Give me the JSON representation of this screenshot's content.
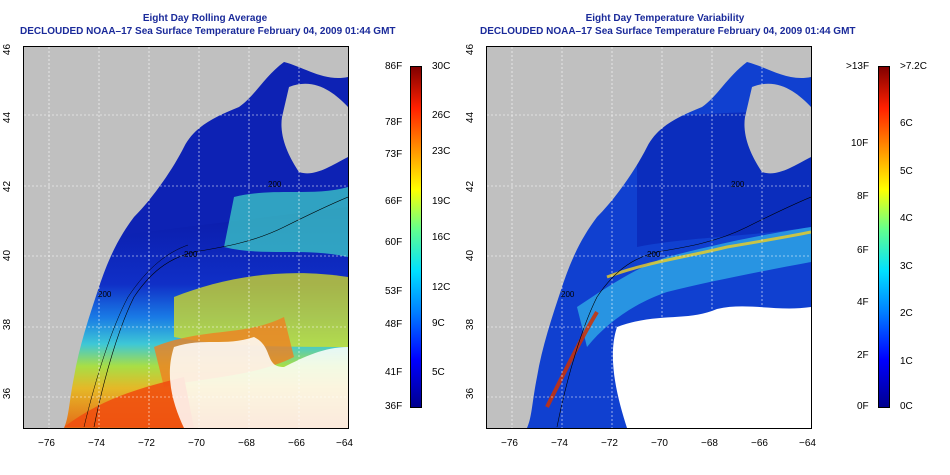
{
  "left_panel": {
    "title_line1": "Eight Day Rolling Average",
    "title_line2": "DECLOUDED NOAA–17 Sea Surface Temperature February 04, 2009 01:44 GMT",
    "colorbar": {
      "left_labels": [
        "86F",
        "78F",
        "73F",
        "66F",
        "60F",
        "53F",
        "48F",
        "41F",
        "36F"
      ],
      "right_labels": [
        "30C",
        "26C",
        "23C",
        "19C",
        "16C",
        "12C",
        "9C",
        "5C"
      ]
    },
    "contour_labels": [
      "200",
      "200",
      "200"
    ]
  },
  "right_panel": {
    "title_line1": "Eight Day Temperature Variability",
    "title_line2": "DECLOUDED NOAA–17 Sea Surface Temperature February 04, 2009 01:44 GMT",
    "colorbar": {
      "left_labels": [
        ">13F",
        "10F",
        "8F",
        "6F",
        "4F",
        "2F",
        "0F"
      ],
      "right_labels": [
        ">7.2C",
        "6C",
        "5C",
        "4C",
        "3C",
        "2C",
        "1C",
        "0C"
      ]
    },
    "contour_labels": [
      "200",
      "200",
      "200"
    ]
  },
  "axes": {
    "lon_labels": [
      "−76",
      "−74",
      "−72",
      "−70",
      "−68",
      "−66",
      "−64"
    ],
    "lat_labels": [
      "46",
      "44",
      "42",
      "40",
      "38",
      "36"
    ]
  },
  "colors": {
    "title": "#1a2a9a",
    "land": "#c0c0c0",
    "cloud_mask": "#ffffff",
    "cold": "#0a1aa8",
    "warm": "#e03a00"
  }
}
